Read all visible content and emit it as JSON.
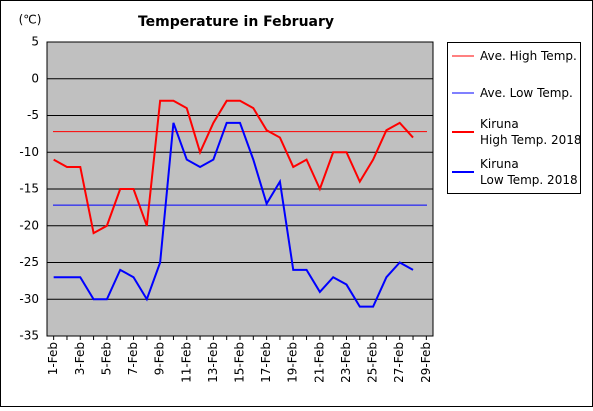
{
  "chart_data": {
    "type": "line",
    "title": "Temperature in February",
    "y_label": "(℃)",
    "categories": [
      "1-Feb",
      null,
      "3-Feb",
      null,
      "5-Feb",
      null,
      "7-Feb",
      null,
      "9-Feb",
      null,
      "11-Feb",
      null,
      "13-Feb",
      null,
      "15-Feb",
      null,
      "17-Feb",
      null,
      "19-Feb",
      null,
      "21-Feb",
      null,
      "23-Feb",
      null,
      "25-Feb",
      null,
      "27-Feb",
      null,
      "29-Feb"
    ],
    "series": [
      {
        "name": "Ave. High Temp.",
        "color": "#ff0000",
        "value": -7.2
      },
      {
        "name": "Ave. Low Temp.",
        "color": "#0000ff",
        "value": -17.2
      },
      {
        "name": "Kiruna\nHigh Temp. 2018",
        "color": "#ff0000",
        "values": [
          -11,
          -12,
          -12,
          -21,
          -20,
          -15,
          -15,
          -20,
          -3,
          -3,
          -4,
          -10,
          -6,
          -3,
          -3,
          -4,
          -7,
          -8,
          -12,
          -11,
          -15,
          -10,
          -10,
          -14,
          -11,
          -7,
          -6,
          -8,
          null
        ]
      },
      {
        "name": "Kiruna\nLow Temp. 2018",
        "color": "#0000ff",
        "values": [
          -27,
          -27,
          -27,
          -30,
          -30,
          -26,
          -27,
          -30,
          -25,
          -6,
          -11,
          -12,
          -11,
          -6,
          -6,
          -11,
          -17,
          -14,
          -26,
          -26,
          -29,
          -27,
          -28,
          -31,
          -31,
          -27,
          -25,
          -26,
          null
        ]
      }
    ],
    "ylim": [
      -35,
      5
    ],
    "yticks": [
      5,
      0,
      -5,
      -10,
      -15,
      -20,
      -25,
      -30,
      -35
    ],
    "grid": true,
    "legend": "right"
  }
}
